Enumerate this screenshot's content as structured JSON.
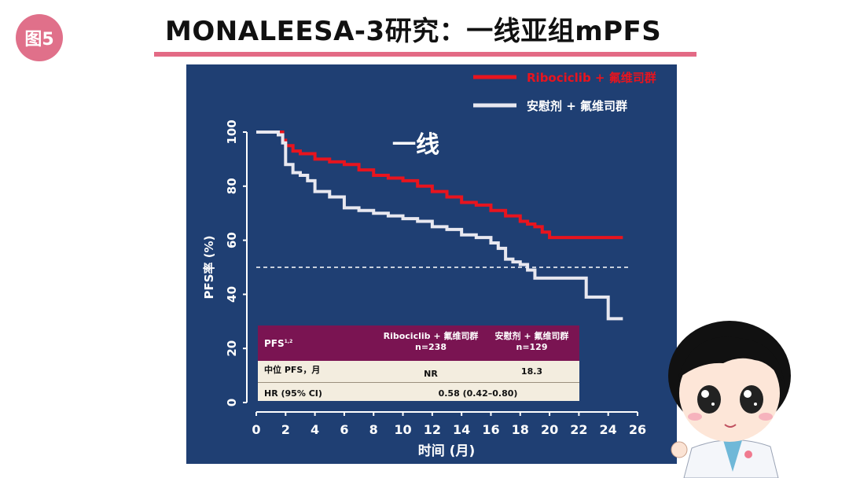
{
  "slide": {
    "badge": "图5",
    "title": "MONALEESA-3研究：一线亚组mPFS"
  },
  "chart_data": {
    "type": "line",
    "subtitle": "一线",
    "xlabel": "时间 (月)",
    "ylabel": "PFS率 (%)",
    "xlim": [
      0,
      26
    ],
    "ylim": [
      0,
      100
    ],
    "x_ticks": [
      "0",
      "2",
      "4",
      "6",
      "8",
      "10",
      "12",
      "14",
      "16",
      "18",
      "20",
      "22",
      "24",
      "26"
    ],
    "y_ticks": [
      "0",
      "20",
      "40",
      "60",
      "80",
      "100"
    ],
    "reference_line": {
      "y": 50,
      "style": "dashed"
    },
    "legend": {
      "placement": "top-right",
      "entries": [
        "Ribociclib + 氟维司群",
        "安慰剂 + 氟维司群"
      ]
    },
    "series": [
      {
        "name": "Ribociclib + 氟维司群",
        "color": "#e8141e",
        "x": [
          0,
          1.5,
          1.8,
          2,
          2.5,
          3,
          4,
          5,
          6,
          7,
          8,
          9,
          10,
          11,
          12,
          13,
          14,
          15,
          16,
          17,
          18,
          18.5,
          19,
          19.5,
          20,
          21,
          22,
          23,
          24,
          25
        ],
        "y": [
          100,
          100,
          97,
          95,
          93,
          92,
          90,
          89,
          88,
          86,
          84,
          83,
          82,
          80,
          78,
          76,
          74,
          73,
          71,
          69,
          67,
          66,
          65,
          63,
          61,
          61,
          61,
          61,
          61,
          61
        ]
      },
      {
        "name": "安慰剂 + 氟维司群",
        "color": "#e8e8f0",
        "x": [
          0,
          1.5,
          1.8,
          2,
          2.5,
          3,
          3.5,
          4,
          5,
          6,
          7,
          8,
          9,
          10,
          11,
          12,
          13,
          14,
          15,
          16,
          16.5,
          17,
          17.5,
          18,
          18.5,
          19,
          20,
          21,
          22,
          22.5,
          23,
          24,
          25
        ],
        "y": [
          100,
          99,
          96,
          88,
          85,
          84,
          82,
          78,
          76,
          72,
          71,
          70,
          69,
          68,
          67,
          65,
          64,
          62,
          61,
          59,
          57,
          53,
          52,
          51,
          49,
          46,
          46,
          46,
          46,
          39,
          39,
          31,
          31
        ]
      }
    ]
  },
  "table": {
    "header": {
      "label": "PFS",
      "label_sup": "1,2",
      "col1_line1": "Ribociclib + 氟维司群",
      "col1_line2": "n=238",
      "col2_line1": "安慰剂 + 氟维司群",
      "col2_line2": "n=129"
    },
    "rows": [
      {
        "label": "中位 PFS，月",
        "col1": "NR",
        "col2": "18.3"
      },
      {
        "label": "HR (95% CI)",
        "value": "0.58 (0.42–0.80)"
      }
    ]
  },
  "mascot": {
    "icon": "doctor-mascot-icon"
  }
}
